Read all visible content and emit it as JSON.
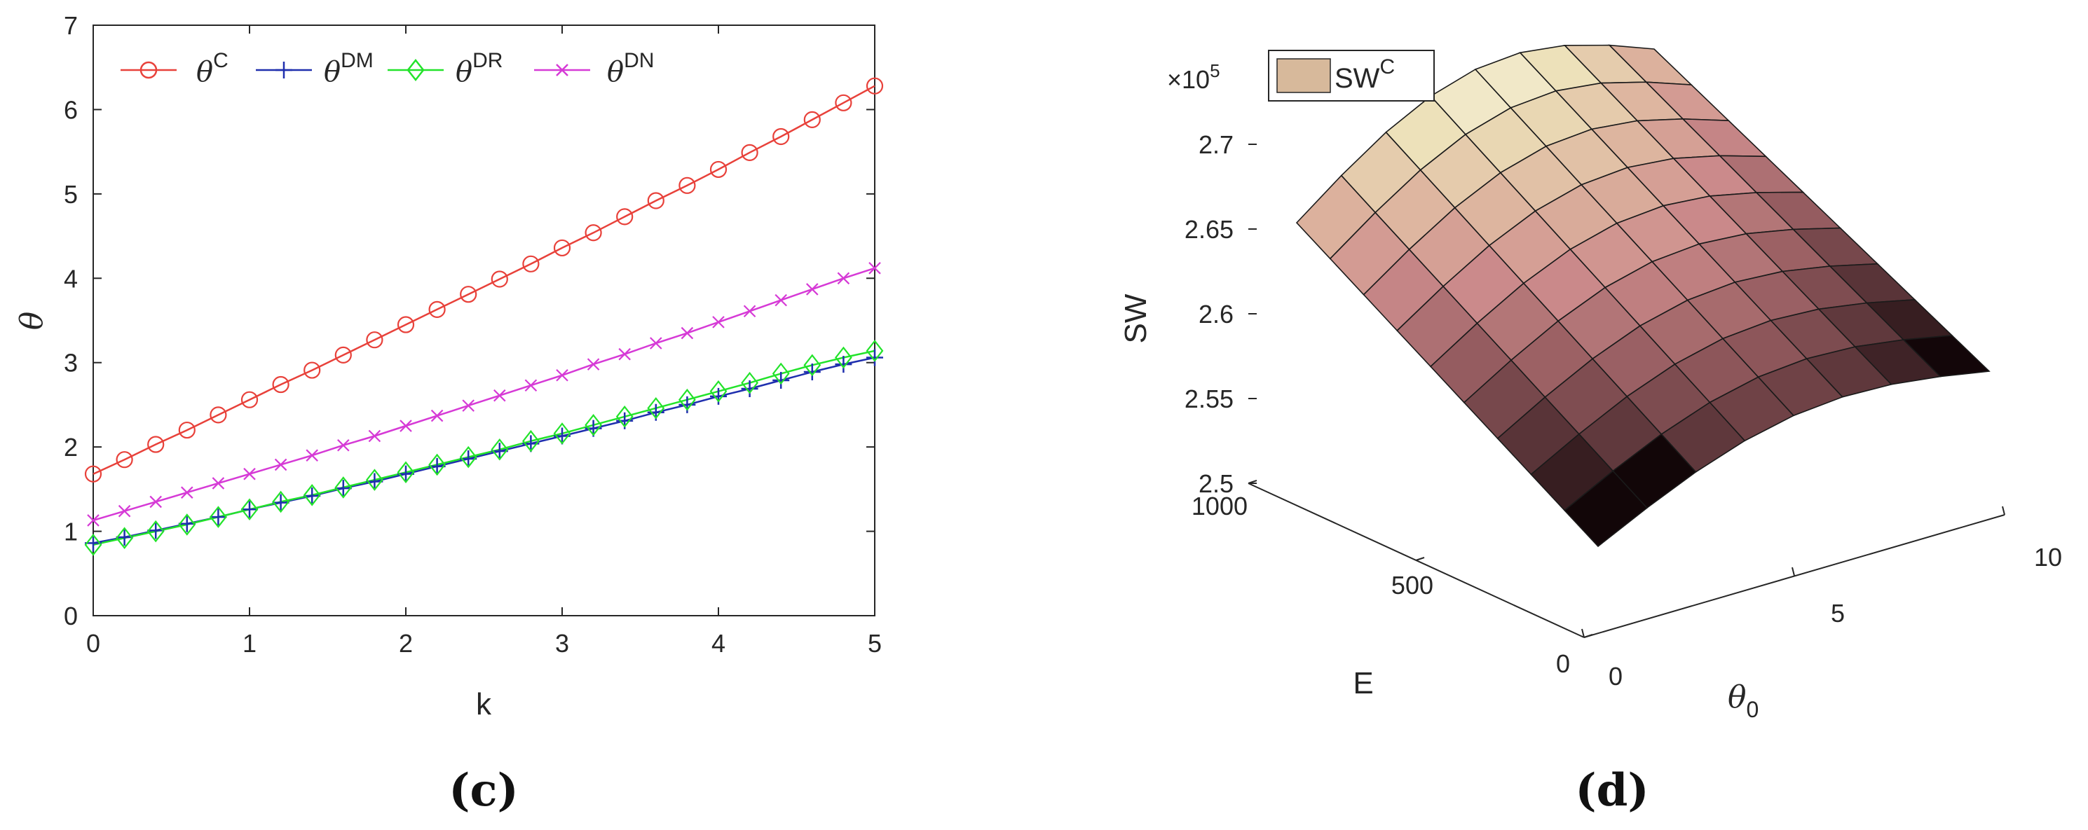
{
  "chart_data": [
    {
      "panel": "c",
      "type": "line",
      "title": "",
      "xlabel": "k",
      "ylabel": "θ",
      "xlim": [
        0,
        5
      ],
      "ylim": [
        0,
        7
      ],
      "xticks": [
        "0",
        "1",
        "2",
        "3",
        "4",
        "5"
      ],
      "yticks": [
        "0",
        "1",
        "2",
        "3",
        "4",
        "5",
        "6",
        "7"
      ],
      "grid": false,
      "legend_position": "top",
      "x": [
        0,
        0.2,
        0.4,
        0.6,
        0.8,
        1.0,
        1.2,
        1.4,
        1.6,
        1.8,
        2.0,
        2.2,
        2.4,
        2.6,
        2.8,
        3.0,
        3.2,
        3.4,
        3.6,
        3.8,
        4.0,
        4.2,
        4.4,
        4.6,
        4.8,
        5.0
      ],
      "series": [
        {
          "name": "θ^C",
          "base": "θ",
          "sup": "C",
          "color": "#e8413a",
          "marker": "circle",
          "values": [
            1.68,
            1.85,
            2.03,
            2.2,
            2.38,
            2.56,
            2.74,
            2.91,
            3.09,
            3.27,
            3.45,
            3.63,
            3.81,
            3.99,
            4.17,
            4.36,
            4.54,
            4.73,
            4.92,
            5.1,
            5.29,
            5.49,
            5.68,
            5.88,
            6.08,
            6.28
          ]
        },
        {
          "name": "θ^DM",
          "base": "θ",
          "sup": "DM",
          "color": "#1f2fae",
          "marker": "plus",
          "values": [
            0.86,
            0.93,
            1.01,
            1.09,
            1.17,
            1.26,
            1.34,
            1.42,
            1.51,
            1.59,
            1.68,
            1.77,
            1.86,
            1.95,
            2.04,
            2.13,
            2.22,
            2.31,
            2.41,
            2.5,
            2.6,
            2.69,
            2.79,
            2.89,
            2.98,
            3.06
          ]
        },
        {
          "name": "θ^DR",
          "base": "θ",
          "sup": "DR",
          "color": "#22e32a",
          "marker": "diamond",
          "values": [
            0.84,
            0.92,
            1.0,
            1.08,
            1.17,
            1.26,
            1.35,
            1.43,
            1.52,
            1.61,
            1.7,
            1.79,
            1.88,
            1.97,
            2.07,
            2.16,
            2.26,
            2.36,
            2.46,
            2.56,
            2.66,
            2.76,
            2.87,
            2.97,
            3.06,
            3.14
          ]
        },
        {
          "name": "θ^DN",
          "base": "θ",
          "sup": "DN",
          "color": "#d63ad6",
          "marker": "x",
          "values": [
            1.13,
            1.24,
            1.35,
            1.46,
            1.57,
            1.68,
            1.79,
            1.9,
            2.02,
            2.13,
            2.25,
            2.37,
            2.49,
            2.61,
            2.73,
            2.85,
            2.98,
            3.1,
            3.23,
            3.35,
            3.48,
            3.61,
            3.74,
            3.87,
            4.0,
            4.12
          ]
        }
      ]
    },
    {
      "panel": "d",
      "type": "surface",
      "title": "",
      "zlabel": "SW",
      "xlabel": "θ0",
      "xlabel_base": "θ",
      "xlabel_sub": "0",
      "ylabel": "E",
      "exponent_base": "×10",
      "exponent_power": "5",
      "zlim": [
        2.5,
        2.7
      ],
      "zticks": [
        "2.5",
        "2.55",
        "2.6",
        "2.65",
        "2.7"
      ],
      "xticks": [
        "0",
        "5",
        "10"
      ],
      "yticks": [
        "0",
        "500",
        "1000"
      ],
      "legend": {
        "label": "SW",
        "sup": "C",
        "color": "#d7b99b"
      },
      "grid_rows": 9,
      "grid_cols": 8
    }
  ],
  "panel_labels": {
    "c": "(c)",
    "d": "(d)"
  }
}
